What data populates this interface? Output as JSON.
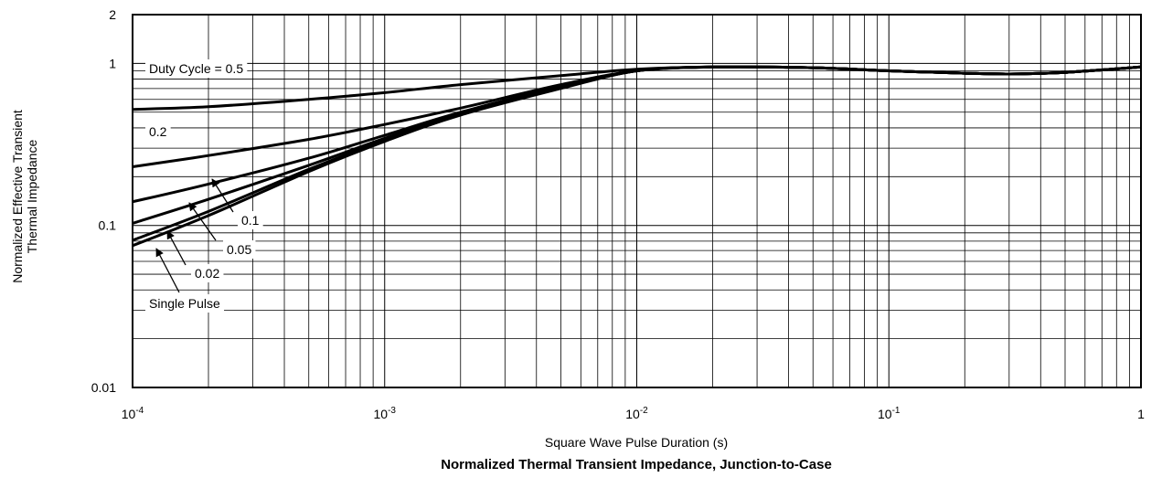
{
  "chart_data": {
    "type": "line",
    "title": "Normalized Thermal Transient Impedance, Junction-to-Case",
    "xlabel": "Square Wave Pulse Duration (s)",
    "ylabel_lines": [
      "Normalized Effective Transient",
      "Thermal Impedance"
    ],
    "xscale": "log",
    "yscale": "log",
    "xlim": [
      0.0001,
      1
    ],
    "ylim": [
      0.01,
      2
    ],
    "grid": true,
    "x_ticks": [
      {
        "base": "10",
        "exp": "-4"
      },
      {
        "base": "10",
        "exp": "-3"
      },
      {
        "base": "10",
        "exp": "-2"
      },
      {
        "base": "10",
        "exp": "-1"
      },
      {
        "base": "1",
        "exp": ""
      }
    ],
    "y_ticks": [
      "2",
      "1",
      "0.1",
      "0.01"
    ],
    "series": [
      {
        "name": "Duty Cycle = 0.5",
        "x": [
          0.0001,
          0.0002,
          0.0005,
          0.001,
          0.002,
          0.005,
          0.01,
          0.02,
          0.05,
          0.1,
          0.2,
          0.3,
          0.5,
          1
        ],
        "y": [
          0.52,
          0.54,
          0.6,
          0.66,
          0.74,
          0.84,
          0.92,
          0.95,
          0.94,
          0.9,
          0.87,
          0.86,
          0.88,
          0.95
        ]
      },
      {
        "name": "0.2",
        "x": [
          0.0001,
          0.0002,
          0.0005,
          0.001,
          0.002,
          0.005,
          0.01,
          0.02,
          0.05,
          0.1,
          0.2,
          0.3,
          0.5,
          1
        ],
        "y": [
          0.23,
          0.27,
          0.34,
          0.42,
          0.53,
          0.74,
          0.9,
          0.95,
          0.94,
          0.9,
          0.87,
          0.86,
          0.88,
          0.95
        ]
      },
      {
        "name": "0.1",
        "x": [
          0.0001,
          0.0002,
          0.0005,
          0.001,
          0.002,
          0.005,
          0.01,
          0.02,
          0.05,
          0.1,
          0.2,
          0.3,
          0.5,
          1
        ],
        "y": [
          0.14,
          0.18,
          0.26,
          0.36,
          0.5,
          0.72,
          0.9,
          0.95,
          0.94,
          0.9,
          0.87,
          0.86,
          0.88,
          0.95
        ]
      },
      {
        "name": "0.05",
        "x": [
          0.0001,
          0.0002,
          0.0005,
          0.001,
          0.002,
          0.005,
          0.01,
          0.02,
          0.05,
          0.1,
          0.2,
          0.3,
          0.5,
          1
        ],
        "y": [
          0.103,
          0.145,
          0.235,
          0.345,
          0.49,
          0.71,
          0.9,
          0.95,
          0.94,
          0.9,
          0.87,
          0.86,
          0.88,
          0.95
        ]
      },
      {
        "name": "0.02",
        "x": [
          0.0001,
          0.0002,
          0.0005,
          0.001,
          0.002,
          0.005,
          0.01,
          0.02,
          0.05,
          0.1,
          0.2,
          0.3,
          0.5,
          1
        ],
        "y": [
          0.081,
          0.122,
          0.222,
          0.335,
          0.485,
          0.705,
          0.9,
          0.95,
          0.94,
          0.9,
          0.87,
          0.86,
          0.88,
          0.95
        ]
      },
      {
        "name": "Single Pulse",
        "x": [
          0.0001,
          0.0002,
          0.0005,
          0.001,
          0.002,
          0.005,
          0.01,
          0.02,
          0.05,
          0.1,
          0.2,
          0.3,
          0.5,
          1
        ],
        "y": [
          0.075,
          0.115,
          0.215,
          0.33,
          0.48,
          0.7,
          0.9,
          0.95,
          0.94,
          0.9,
          0.87,
          0.86,
          0.88,
          0.95
        ]
      }
    ],
    "annotations": [
      {
        "text": "Duty Cycle = 0.5",
        "series": "Duty Cycle = 0.5"
      },
      {
        "text": "0.2",
        "series": "0.2"
      },
      {
        "text": "0.1",
        "series": "0.1"
      },
      {
        "text": "0.05",
        "series": "0.05"
      },
      {
        "text": "0.02",
        "series": "0.02"
      },
      {
        "text": "Single Pulse",
        "series": "Single Pulse"
      }
    ]
  }
}
